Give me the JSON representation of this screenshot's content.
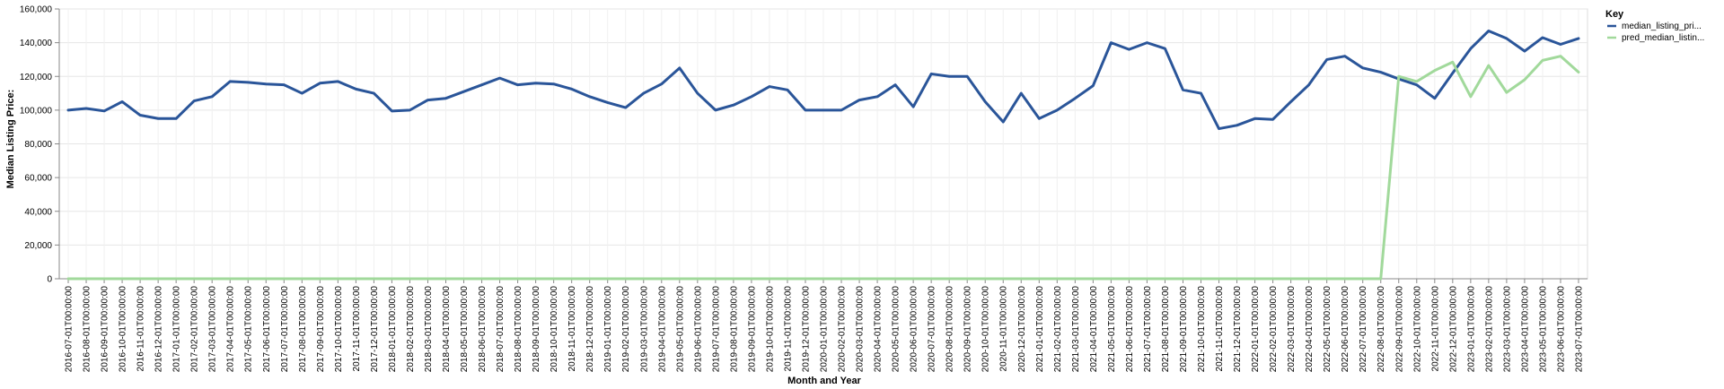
{
  "chart_data": {
    "type": "line",
    "xlabel": "Month and Year",
    "ylabel": "Median Listing Price:",
    "ylim": [
      0,
      160000
    ],
    "yticks": [
      "0",
      "20,000",
      "40,000",
      "60,000",
      "80,000",
      "100,000",
      "120,000",
      "140,000",
      "160,000"
    ],
    "ytick_values": [
      0,
      20000,
      40000,
      60000,
      80000,
      100000,
      120000,
      140000,
      160000
    ],
    "grid": true,
    "legend": {
      "title": "Key",
      "placement": "right"
    },
    "x": [
      "2016-07-01T00:00:00",
      "2016-08-01T00:00:00",
      "2016-09-01T00:00:00",
      "2016-10-01T00:00:00",
      "2016-11-01T00:00:00",
      "2016-12-01T00:00:00",
      "2017-01-01T00:00:00",
      "2017-02-01T00:00:00",
      "2017-03-01T00:00:00",
      "2017-04-01T00:00:00",
      "2017-05-01T00:00:00",
      "2017-06-01T00:00:00",
      "2017-07-01T00:00:00",
      "2017-08-01T00:00:00",
      "2017-09-01T00:00:00",
      "2017-10-01T00:00:00",
      "2017-11-01T00:00:00",
      "2017-12-01T00:00:00",
      "2018-01-01T00:00:00",
      "2018-02-01T00:00:00",
      "2018-03-01T00:00:00",
      "2018-04-01T00:00:00",
      "2018-05-01T00:00:00",
      "2018-06-01T00:00:00",
      "2018-07-01T00:00:00",
      "2018-08-01T00:00:00",
      "2018-09-01T00:00:00",
      "2018-10-01T00:00:00",
      "2018-11-01T00:00:00",
      "2018-12-01T00:00:00",
      "2019-01-01T00:00:00",
      "2019-02-01T00:00:00",
      "2019-03-01T00:00:00",
      "2019-04-01T00:00:00",
      "2019-05-01T00:00:00",
      "2019-06-01T00:00:00",
      "2019-07-01T00:00:00",
      "2019-08-01T00:00:00",
      "2019-09-01T00:00:00",
      "2019-10-01T00:00:00",
      "2019-11-01T00:00:00",
      "2019-12-01T00:00:00",
      "2020-01-01T00:00:00",
      "2020-02-01T00:00:00",
      "2020-03-01T00:00:00",
      "2020-04-01T00:00:00",
      "2020-05-01T00:00:00",
      "2020-06-01T00:00:00",
      "2020-07-01T00:00:00",
      "2020-08-01T00:00:00",
      "2020-09-01T00:00:00",
      "2020-10-01T00:00:00",
      "2020-11-01T00:00:00",
      "2020-12-01T00:00:00",
      "2021-01-01T00:00:00",
      "2021-02-01T00:00:00",
      "2021-03-01T00:00:00",
      "2021-04-01T00:00:00",
      "2021-05-01T00:00:00",
      "2021-06-01T00:00:00",
      "2021-07-01T00:00:00",
      "2021-08-01T00:00:00",
      "2021-09-01T00:00:00",
      "2021-10-01T00:00:00",
      "2021-11-01T00:00:00",
      "2021-12-01T00:00:00",
      "2022-01-01T00:00:00",
      "2022-02-01T00:00:00",
      "2022-03-01T00:00:00",
      "2022-04-01T00:00:00",
      "2022-05-01T00:00:00",
      "2022-06-01T00:00:00",
      "2022-07-01T00:00:00",
      "2022-08-01T00:00:00",
      "2022-09-01T00:00:00",
      "2022-10-01T00:00:00",
      "2022-11-01T00:00:00",
      "2022-12-01T00:00:00",
      "2023-01-01T00:00:00",
      "2023-02-01T00:00:00",
      "2023-03-01T00:00:00",
      "2023-04-01T00:00:00",
      "2023-05-01T00:00:00",
      "2023-06-01T00:00:00",
      "2023-07-01T00:00:00"
    ],
    "series": [
      {
        "name": "median_listing_pri...",
        "color": "#2a5599",
        "values": [
          100000,
          101000,
          99500,
          105000,
          97000,
          95000,
          95000,
          105500,
          108000,
          117000,
          116500,
          115500,
          115000,
          110000,
          116000,
          117000,
          112500,
          110000,
          99500,
          100000,
          106000,
          107000,
          111000,
          115000,
          119000,
          115000,
          116000,
          115500,
          112500,
          108000,
          104500,
          101500,
          110000,
          115500,
          125000,
          110000,
          100000,
          103000,
          108000,
          114000,
          112000,
          100000,
          100000,
          100000,
          106000,
          108000,
          115000,
          102000,
          121500,
          120000,
          120000,
          105000,
          93000,
          110000,
          95000,
          100000,
          107000,
          114500,
          140000,
          136000,
          140000,
          136500,
          112000,
          110000,
          89000,
          91000,
          95000,
          94500,
          105000,
          115000,
          130000,
          132000,
          125000,
          122500,
          118500,
          115000,
          107000,
          122000,
          136500,
          147000,
          142500,
          135000,
          143000,
          139000,
          142500
        ]
      },
      {
        "name": "pred_median_listin...",
        "color": "#a1d99b",
        "values": [
          0,
          0,
          0,
          0,
          0,
          0,
          0,
          0,
          0,
          0,
          0,
          0,
          0,
          0,
          0,
          0,
          0,
          0,
          0,
          0,
          0,
          0,
          0,
          0,
          0,
          0,
          0,
          0,
          0,
          0,
          0,
          0,
          0,
          0,
          0,
          0,
          0,
          0,
          0,
          0,
          0,
          0,
          0,
          0,
          0,
          0,
          0,
          0,
          0,
          0,
          0,
          0,
          0,
          0,
          0,
          0,
          0,
          0,
          0,
          0,
          0,
          0,
          0,
          0,
          0,
          0,
          0,
          0,
          0,
          0,
          0,
          0,
          0,
          0,
          120000,
          117000,
          123500,
          128500,
          108000,
          126500,
          110500,
          118000,
          129500,
          132000,
          122500
        ]
      }
    ]
  }
}
